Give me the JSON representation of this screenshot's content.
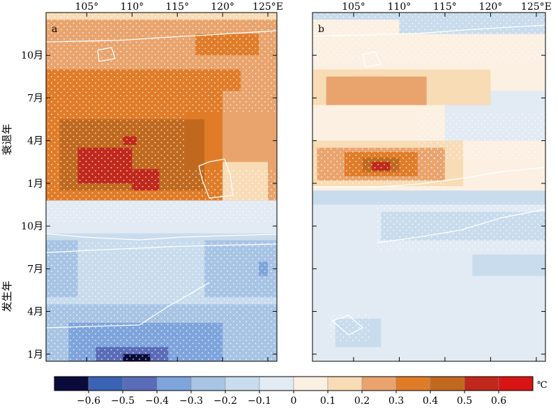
{
  "chart_data": {
    "type": "heatmap",
    "units": "℃",
    "x_ticks": [
      "105°",
      "110°",
      "115°",
      "120°",
      "125°E"
    ],
    "x_tick_values": [
      105,
      110,
      115,
      120,
      125
    ],
    "xlim": [
      100.5,
      126
    ],
    "y_ticks": [
      "1月",
      "4月",
      "7月",
      "10月",
      "1月",
      "4月",
      "7月",
      "10月"
    ],
    "y_tick_values": [
      1,
      4,
      7,
      10,
      13,
      16,
      19,
      22
    ],
    "ylim": [
      0.5,
      25
    ],
    "y_group_labels": [
      "发生年",
      "衰退年"
    ],
    "legend": {
      "boundaries": [
        -0.7,
        -0.6,
        -0.5,
        -0.4,
        -0.3,
        -0.2,
        -0.1,
        0,
        0.1,
        0.2,
        0.3,
        0.4,
        0.5,
        0.6,
        0.7
      ],
      "tick_labels": [
        "−0.6",
        "−0.5",
        "−0.4",
        "−0.3",
        "−0.2",
        "−0.1",
        "0",
        "0.1",
        "0.2",
        "0.3",
        "0.4",
        "0.5",
        "0.6"
      ],
      "colors": [
        "#0b0b3b",
        "#3a62b5",
        "#5a6cb8",
        "#7ea4dc",
        "#a8c4e4",
        "#c8dced",
        "#e2eaf4",
        "#fbf0e2",
        "#f8dcb6",
        "#e9a46e",
        "#e07c28",
        "#c0691e",
        "#c0281c",
        "#d81414"
      ]
    },
    "panels": [
      {
        "label": "a",
        "regions": [
          {
            "x": [
              100.5,
              126
            ],
            "y": [
              0.5,
              9.5
            ],
            "value": -0.15
          },
          {
            "x": [
              100.5,
              126
            ],
            "y": [
              9.5,
              11.8
            ],
            "value": -0.05
          },
          {
            "x": [
              100.5,
              126
            ],
            "y": [
              11.8,
              25
            ],
            "value": 0.15
          },
          {
            "x": [
              100.5,
              126
            ],
            "y": [
              0.5,
              4.5
            ],
            "value": -0.25
          },
          {
            "x": [
              103,
              120
            ],
            "y": [
              0.5,
              3.2
            ],
            "value": -0.35
          },
          {
            "x": [
              106,
              114
            ],
            "y": [
              0.5,
              1.5
            ],
            "value": -0.45
          },
          {
            "x": [
              109,
              112
            ],
            "y": [
              0.5,
              1.0
            ],
            "value": -0.65
          },
          {
            "x": [
              100.5,
              104
            ],
            "y": [
              5,
              9
            ],
            "value": -0.25
          },
          {
            "x": [
              118,
              126
            ],
            "y": [
              5,
              9
            ],
            "value": -0.25
          },
          {
            "x": [
              124,
              125
            ],
            "y": [
              6.5,
              7.5
            ],
            "value": -0.35
          },
          {
            "x": [
              100.5,
              126
            ],
            "y": [
              11.8,
              24.5
            ],
            "value": 0.25
          },
          {
            "x": [
              100.5,
              120
            ],
            "y": [
              11.8,
              21
            ],
            "value": 0.35
          },
          {
            "x": [
              102,
              118
            ],
            "y": [
              12.5,
              17.5
            ],
            "value": 0.45
          },
          {
            "x": [
              104,
              110
            ],
            "y": [
              13,
              15.5
            ],
            "value": 0.55
          },
          {
            "x": [
              110,
              113
            ],
            "y": [
              12.5,
              14
            ],
            "value": 0.55
          },
          {
            "x": [
              117,
              124
            ],
            "y": [
              22,
              23.5
            ],
            "value": 0.35
          },
          {
            "x": [
              112,
              122
            ],
            "y": [
              19.5,
              21
            ],
            "value": 0.35
          },
          {
            "x": [
              109,
              110.5
            ],
            "y": [
              15.7,
              16.3
            ],
            "value": 0.55
          },
          {
            "x": [
              120,
              125
            ],
            "y": [
              11.8,
              14.5
            ],
            "value": 0.15
          }
        ]
      },
      {
        "label": "b",
        "regions": [
          {
            "x": [
              100.5,
              126
            ],
            "y": [
              0.5,
              11.5
            ],
            "value": -0.05
          },
          {
            "x": [
              100.5,
              126
            ],
            "y": [
              11.5,
              12.5
            ],
            "value": -0.15
          },
          {
            "x": [
              100.5,
              126
            ],
            "y": [
              12.5,
              25
            ],
            "value": 0.05
          },
          {
            "x": [
              115,
              126
            ],
            "y": [
              16,
              19.5
            ],
            "value": -0.05
          },
          {
            "x": [
              110,
              126
            ],
            "y": [
              23.5,
              25
            ],
            "value": -0.15
          },
          {
            "x": [
              100.5,
              126
            ],
            "y": [
              24.5,
              25
            ],
            "value": -0.2
          },
          {
            "x": [
              108,
              126
            ],
            "y": [
              9,
              11
            ],
            "value": -0.15
          },
          {
            "x": [
              118,
              126
            ],
            "y": [
              6.5,
              8
            ],
            "value": -0.15
          },
          {
            "x": [
              103,
              108
            ],
            "y": [
              1.5,
              3.5
            ],
            "value": -0.15
          },
          {
            "x": [
              100.5,
              120
            ],
            "y": [
              18.5,
              21
            ],
            "value": 0.15
          },
          {
            "x": [
              102,
              113
            ],
            "y": [
              18.5,
              20.5
            ],
            "value": 0.25
          },
          {
            "x": [
              100.5,
              117
            ],
            "y": [
              12.8,
              16
            ],
            "value": 0.15
          },
          {
            "x": [
              101,
              115
            ],
            "y": [
              13.2,
              15.5
            ],
            "value": 0.25
          },
          {
            "x": [
              104,
              112
            ],
            "y": [
              13.5,
              15.2
            ],
            "value": 0.35
          },
          {
            "x": [
              106,
              110
            ],
            "y": [
              13.8,
              14.8
            ],
            "value": 0.45
          },
          {
            "x": [
              107,
              109
            ],
            "y": [
              13.9,
              14.5
            ],
            "value": 0.55
          }
        ]
      }
    ]
  }
}
